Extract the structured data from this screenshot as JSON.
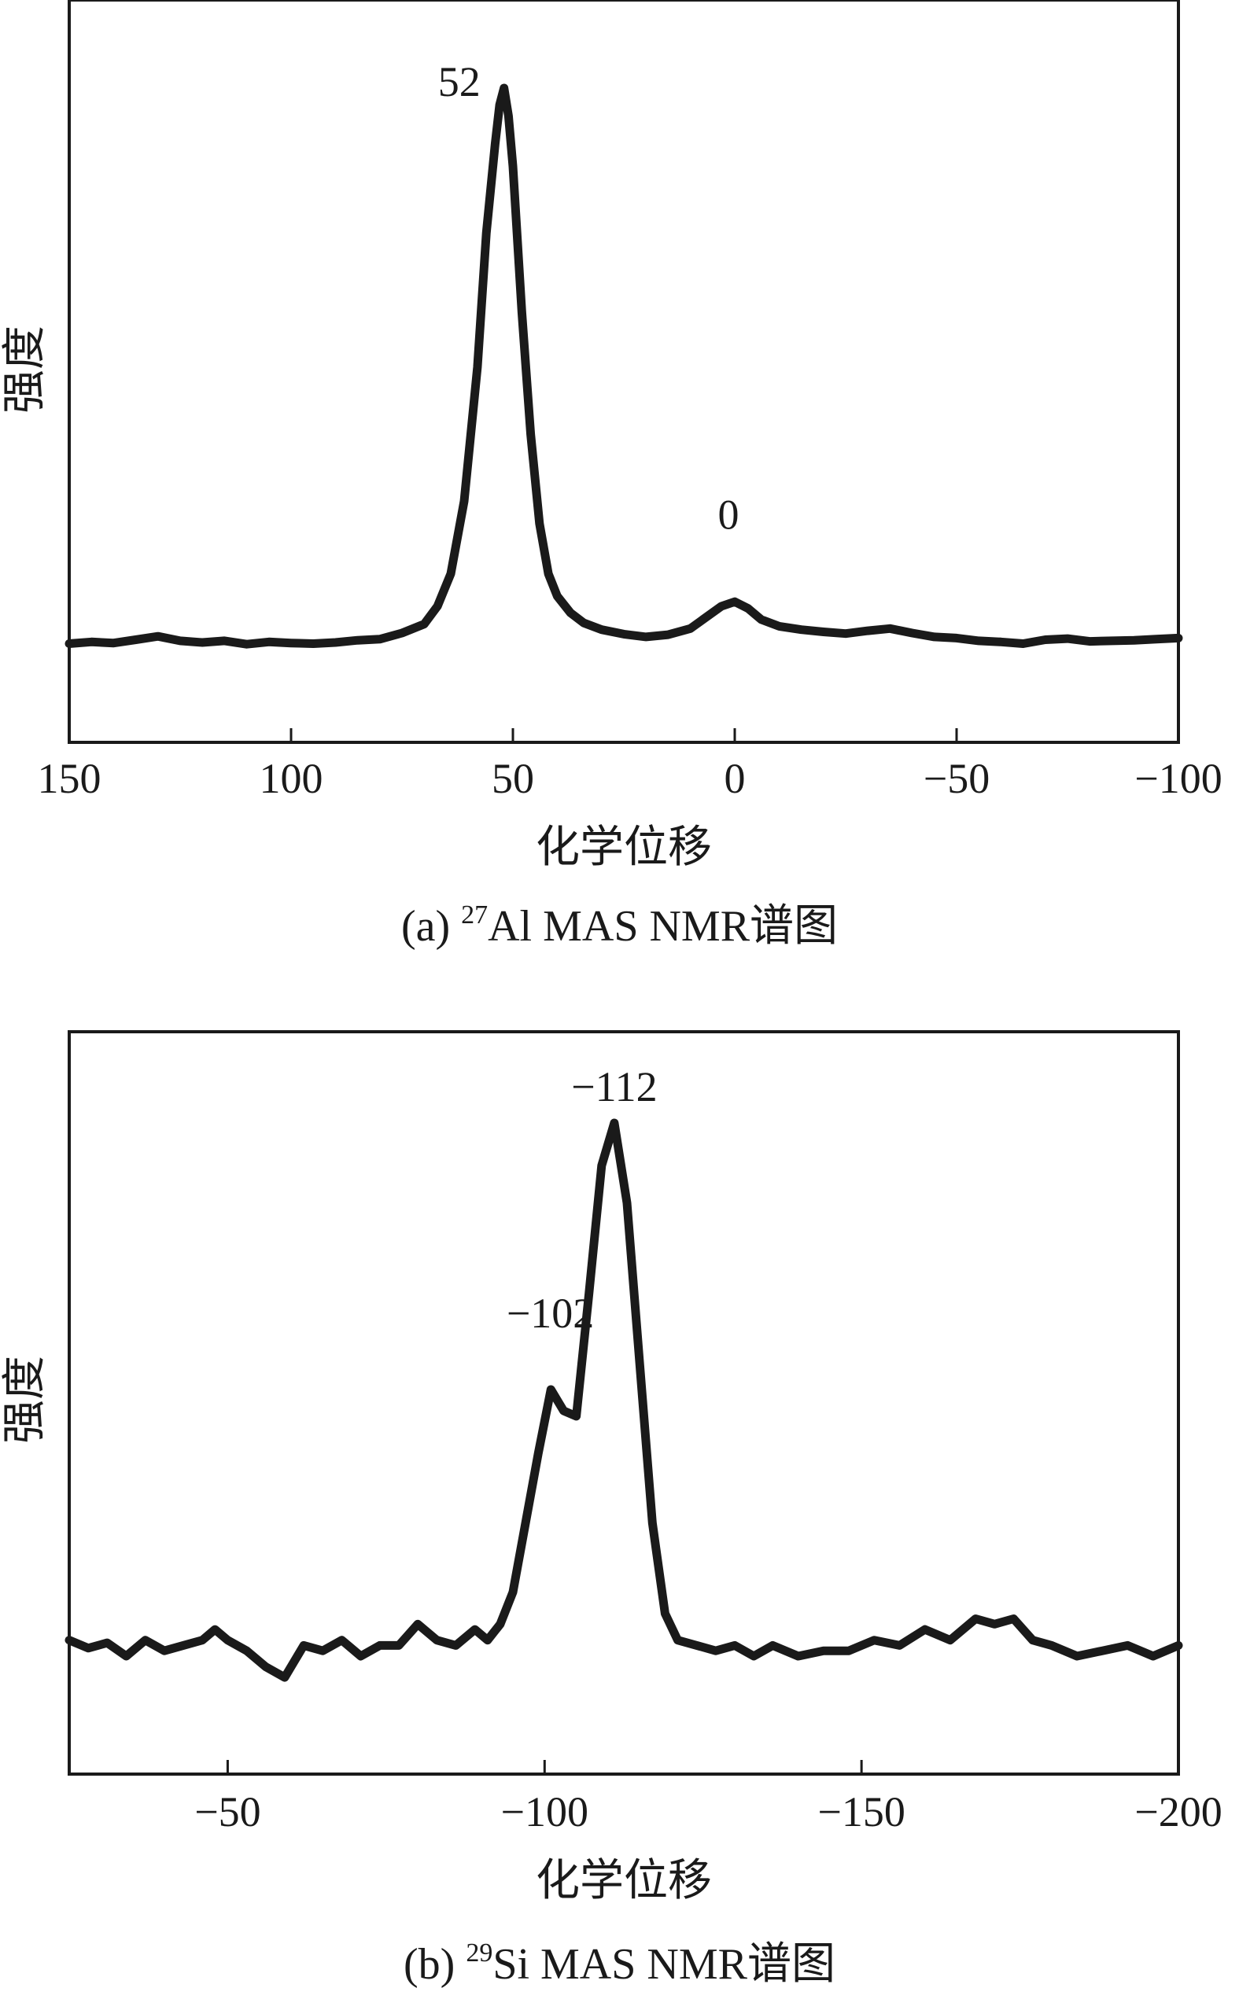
{
  "chart_data": [
    {
      "type": "line",
      "caption": {
        "prefix": "(a) ",
        "isotope": "27",
        "rest": "Al MAS NMR谱图"
      },
      "xlabel": "化学位移",
      "ylabel": "强度",
      "xlim": [
        150,
        -100
      ],
      "x_reversed": true,
      "xticks": [
        150,
        100,
        50,
        0,
        -50,
        -100
      ],
      "xtick_labels": [
        "150",
        "100",
        "50",
        "0",
        "−50",
        "−100"
      ],
      "y_ticks_shown": false,
      "grid": false,
      "annotations": [
        {
          "text": "52",
          "x": 52,
          "y": 1.0
        },
        {
          "text": "0",
          "x": 0,
          "y": 0.14
        }
      ],
      "series": [
        {
          "color": "#1a1a1a",
          "x": [
            150,
            145,
            140,
            135,
            130,
            125,
            120,
            115,
            110,
            105,
            100,
            95,
            90,
            85,
            80,
            75,
            70,
            67,
            64,
            61,
            58,
            56,
            54,
            53,
            52,
            51,
            50,
            48,
            46,
            44,
            42,
            40,
            37,
            34,
            30,
            25,
            20,
            15,
            10,
            6,
            3,
            0,
            -3,
            -6,
            -10,
            -15,
            -20,
            -25,
            -30,
            -35,
            -40,
            -45,
            -50,
            -55,
            -60,
            -65,
            -70,
            -75,
            -80,
            -85,
            -90,
            -95,
            -100
          ],
          "y": [
            0.005,
            0.008,
            0.006,
            0.012,
            0.018,
            0.01,
            0.007,
            0.01,
            0.004,
            0.008,
            0.006,
            0.005,
            0.007,
            0.011,
            0.013,
            0.024,
            0.04,
            0.072,
            0.13,
            0.26,
            0.5,
            0.74,
            0.9,
            0.97,
            1.0,
            0.95,
            0.86,
            0.6,
            0.38,
            0.22,
            0.13,
            0.09,
            0.06,
            0.042,
            0.03,
            0.022,
            0.017,
            0.021,
            0.032,
            0.055,
            0.072,
            0.08,
            0.068,
            0.048,
            0.036,
            0.03,
            0.026,
            0.023,
            0.028,
            0.032,
            0.024,
            0.017,
            0.015,
            0.01,
            0.008,
            0.005,
            0.012,
            0.014,
            0.009,
            0.01,
            0.011,
            0.013,
            0.015
          ]
        }
      ]
    },
    {
      "type": "line",
      "caption": {
        "prefix": "(b) ",
        "isotope": "29",
        "rest": "Si MAS NMR谱图"
      },
      "xlabel": "化学位移",
      "ylabel": "强度",
      "xlim": [
        -25,
        -200
      ],
      "x_reversed": true,
      "xticks": [
        -50,
        -100,
        -150,
        -200
      ],
      "xtick_labels": [
        "−50",
        "−100",
        "−150",
        "−200"
      ],
      "y_ticks_shown": false,
      "grid": false,
      "annotations": [
        {
          "text": "−112",
          "x": -111,
          "y": 1.0
        },
        {
          "text": "−102",
          "x": -101,
          "y": 0.55
        }
      ],
      "series": [
        {
          "color": "#1a1a1a",
          "x": [
            -25,
            -28,
            -31,
            -34,
            -37,
            -40,
            -43,
            -46,
            -48,
            -50,
            -53,
            -56,
            -59,
            -62,
            -65,
            -68,
            -71,
            -74,
            -77,
            -80,
            -83,
            -86,
            -89,
            -91,
            -93,
            -95,
            -97,
            -99,
            -101,
            -103,
            -105,
            -107,
            -109,
            -111,
            -113,
            -115,
            -117,
            -119,
            -121,
            -124,
            -127,
            -130,
            -133,
            -136,
            -140,
            -144,
            -148,
            -152,
            -156,
            -160,
            -164,
            -168,
            -171,
            -174,
            -177,
            -180,
            -184,
            -188,
            -192,
            -196,
            -200
          ],
          "y": [
            0.03,
            0.015,
            0.025,
            0.0,
            0.03,
            0.01,
            0.02,
            0.03,
            0.05,
            0.03,
            0.01,
            -0.02,
            -0.04,
            0.02,
            0.01,
            0.03,
            0.0,
            0.02,
            0.02,
            0.06,
            0.03,
            0.02,
            0.05,
            0.03,
            0.06,
            0.12,
            0.25,
            0.38,
            0.5,
            0.46,
            0.45,
            0.68,
            0.92,
            1.0,
            0.85,
            0.55,
            0.25,
            0.08,
            0.03,
            0.02,
            0.01,
            0.02,
            0.0,
            0.02,
            0.0,
            0.01,
            0.01,
            0.03,
            0.02,
            0.05,
            0.03,
            0.07,
            0.06,
            0.07,
            0.03,
            0.02,
            0.0,
            0.01,
            0.02,
            0.0,
            0.02
          ]
        }
      ]
    }
  ]
}
